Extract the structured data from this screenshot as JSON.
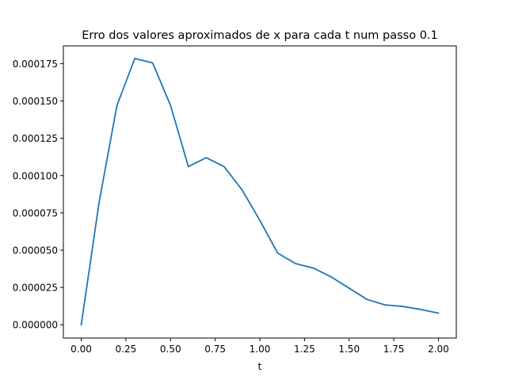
{
  "chart_data": {
    "type": "line",
    "title": "Erro dos valores aproximados de x para cada t num passo 0.1",
    "xlabel": "t",
    "ylabel": "",
    "xlim": [
      -0.1,
      2.1
    ],
    "ylim": [
      -8.9e-06,
      0.0001869
    ],
    "grid": false,
    "x_ticks": [
      0.0,
      0.25,
      0.5,
      0.75,
      1.0,
      1.25,
      1.5,
      1.75,
      2.0
    ],
    "x_tick_labels": [
      "0.00",
      "0.25",
      "0.50",
      "0.75",
      "1.00",
      "1.25",
      "1.50",
      "1.75",
      "2.00"
    ],
    "y_ticks": [
      0.0,
      2.5e-05,
      5e-05,
      7.5e-05,
      0.0001,
      0.000125,
      0.00015,
      0.000175
    ],
    "y_tick_labels": [
      "0.000000",
      "0.000025",
      "0.000050",
      "0.000075",
      "0.000100",
      "0.000125",
      "0.000150",
      "0.000175"
    ],
    "series": [
      {
        "color": "#1f77b4",
        "x": [
          0.0,
          0.1,
          0.2,
          0.3,
          0.4,
          0.5,
          0.6,
          0.7,
          0.8,
          0.9,
          1.0,
          1.1,
          1.2,
          1.3,
          1.4,
          1.5,
          1.6,
          1.7,
          1.8,
          1.9,
          2.0
        ],
        "y": [
          0.0,
          8.2e-05,
          0.000147,
          0.0001785,
          0.0001755,
          0.000147,
          0.000106,
          0.000112,
          0.000106,
          9.05e-05,
          7e-05,
          4.8e-05,
          4.1e-05,
          3.8e-05,
          3.2e-05,
          2.45e-05,
          1.7e-05,
          1.33e-05,
          1.23e-05,
          1.03e-05,
          7.8e-06
        ]
      }
    ]
  }
}
